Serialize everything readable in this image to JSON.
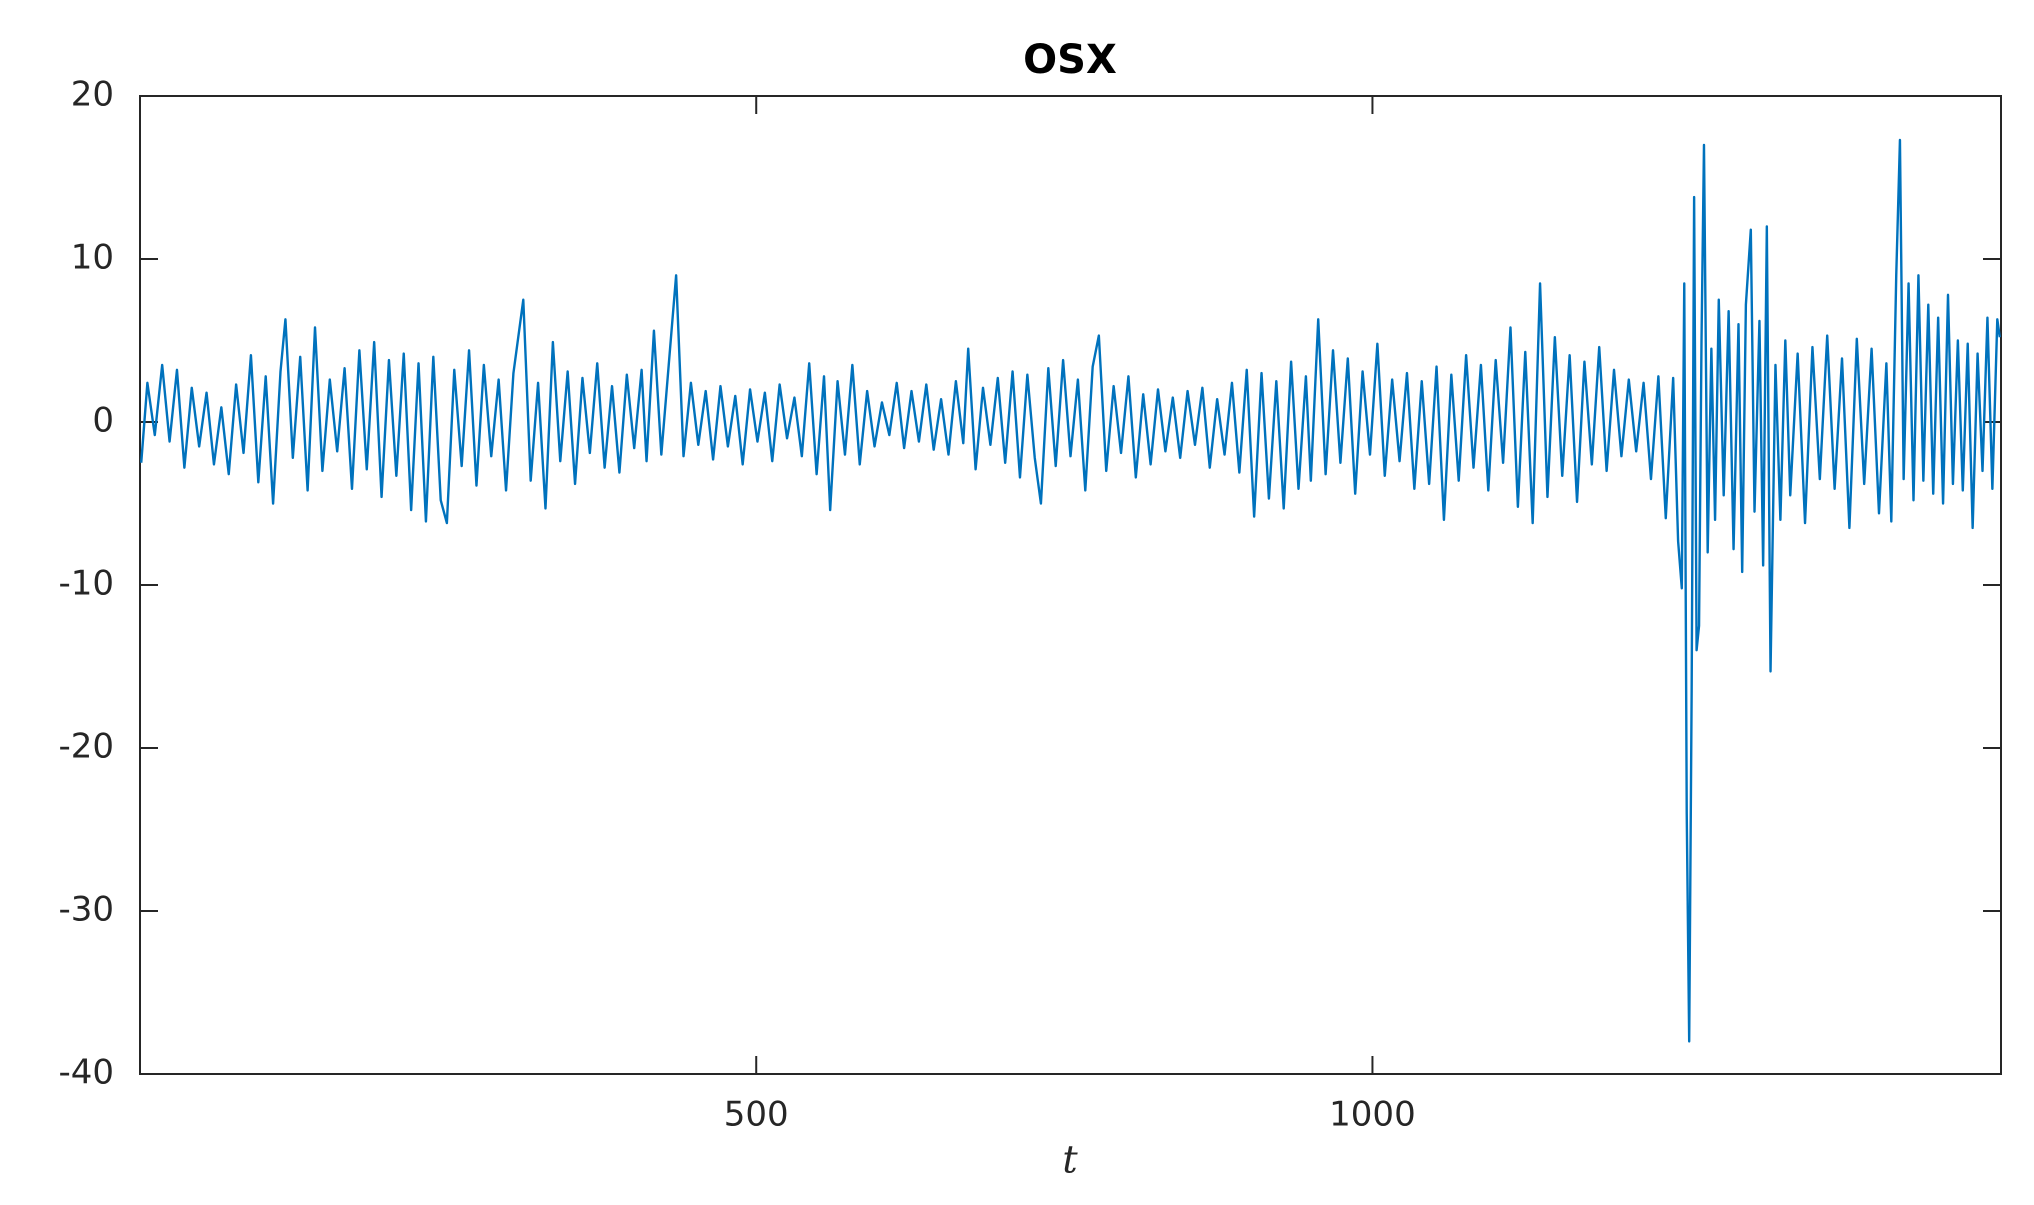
{
  "chart_data": {
    "type": "line",
    "title": "OSX",
    "x_label": "t",
    "color": "#0072bd",
    "xlim": [
      0,
      1510
    ],
    "xticks": [
      500,
      1000
    ],
    "ylim": [
      -40,
      20
    ],
    "yticks": [
      -40,
      -30,
      -20,
      -10,
      0,
      10,
      20
    ],
    "x": [
      1,
      6,
      12,
      18,
      24,
      30,
      36,
      42,
      48,
      54,
      60,
      66,
      72,
      78,
      84,
      90,
      96,
      102,
      108,
      114,
      118,
      124,
      130,
      136,
      142,
      148,
      154,
      160,
      166,
      172,
      178,
      184,
      190,
      196,
      202,
      208,
      214,
      220,
      226,
      232,
      238,
      244,
      249,
      255,
      261,
      267,
      273,
      279,
      285,
      291,
      297,
      303,
      311,
      317,
      323,
      329,
      335,
      341,
      347,
      353,
      359,
      365,
      371,
      377,
      383,
      389,
      395,
      401,
      407,
      411,
      417,
      423,
      429,
      435,
      441,
      447,
      453,
      459,
      465,
      471,
      477,
      483,
      489,
      495,
      501,
      507,
      513,
      519,
      525,
      531,
      537,
      543,
      549,
      555,
      560,
      566,
      572,
      578,
      584,
      590,
      596,
      602,
      608,
      614,
      620,
      626,
      632,
      638,
      644,
      650,
      656,
      662,
      668,
      672,
      678,
      684,
      690,
      696,
      702,
      708,
      714,
      720,
      726,
      731,
      737,
      743,
      749,
      755,
      761,
      767,
      773,
      778,
      784,
      790,
      796,
      802,
      808,
      814,
      820,
      826,
      832,
      838,
      844,
      850,
      856,
      862,
      868,
      874,
      880,
      886,
      892,
      898,
      904,
      910,
      916,
      922,
      928,
      934,
      940,
      946,
      950,
      956,
      962,
      968,
      974,
      980,
      986,
      992,
      998,
      1004,
      1010,
      1016,
      1022,
      1028,
      1034,
      1040,
      1046,
      1052,
      1058,
      1064,
      1070,
      1076,
      1082,
      1088,
      1094,
      1100,
      1106,
      1112,
      1118,
      1124,
      1130,
      1136,
      1142,
      1148,
      1154,
      1160,
      1166,
      1172,
      1178,
      1184,
      1190,
      1196,
      1202,
      1208,
      1214,
      1220,
      1226,
      1232,
      1238,
      1244,
      1248,
      1251,
      1253,
      1255,
      1257,
      1259,
      1261,
      1263,
      1265,
      1267,
      1269,
      1272,
      1275,
      1278,
      1281,
      1285,
      1289,
      1293,
      1297,
      1300,
      1303,
      1307,
      1310,
      1314,
      1317,
      1320,
      1323,
      1327,
      1331,
      1335,
      1339,
      1345,
      1351,
      1357,
      1363,
      1369,
      1375,
      1381,
      1387,
      1393,
      1399,
      1405,
      1411,
      1417,
      1421,
      1425,
      1428,
      1431,
      1435,
      1439,
      1443,
      1447,
      1451,
      1455,
      1459,
      1463,
      1467,
      1471,
      1475,
      1479,
      1483,
      1487,
      1491,
      1495,
      1499,
      1503,
      1507,
      1509
    ],
    "values": [
      -2.5,
      2.4,
      -0.8,
      3.5,
      -1.2,
      3.2,
      -2.8,
      2.1,
      -1.5,
      1.8,
      -2.6,
      0.9,
      -3.2,
      2.3,
      -1.9,
      4.1,
      -3.7,
      2.8,
      -5.0,
      3.1,
      6.3,
      -2.2,
      4.0,
      -4.2,
      5.8,
      -3.0,
      2.6,
      -1.8,
      3.3,
      -4.1,
      4.4,
      -2.9,
      4.9,
      -4.6,
      3.8,
      -3.3,
      4.2,
      -5.4,
      3.6,
      -6.1,
      4.0,
      -4.8,
      -6.2,
      3.2,
      -2.7,
      4.4,
      -3.9,
      3.5,
      -2.1,
      2.6,
      -4.2,
      3.0,
      7.5,
      -3.6,
      2.4,
      -5.3,
      4.9,
      -2.4,
      3.1,
      -3.8,
      2.7,
      -1.9,
      3.6,
      -2.8,
      2.2,
      -3.1,
      2.9,
      -1.6,
      3.2,
      -2.4,
      5.6,
      -2.0,
      3.5,
      9.0,
      -2.1,
      2.4,
      -1.4,
      1.9,
      -2.3,
      2.2,
      -1.5,
      1.6,
      -2.6,
      2.0,
      -1.2,
      1.8,
      -2.4,
      2.3,
      -1.0,
      1.5,
      -2.1,
      3.6,
      -3.2,
      2.8,
      -5.4,
      2.5,
      -2.0,
      3.5,
      -2.6,
      1.9,
      -1.5,
      1.2,
      -0.8,
      2.4,
      -1.6,
      1.9,
      -1.2,
      2.3,
      -1.7,
      1.4,
      -2.0,
      2.5,
      -1.3,
      4.5,
      -2.9,
      2.1,
      -1.4,
      2.7,
      -2.5,
      3.1,
      -3.4,
      2.9,
      -2.2,
      -5.0,
      3.3,
      -2.7,
      3.8,
      -2.1,
      2.6,
      -4.2,
      3.4,
      5.3,
      -3.0,
      2.2,
      -1.9,
      2.8,
      -3.4,
      1.7,
      -2.6,
      2.0,
      -1.8,
      1.5,
      -2.2,
      1.9,
      -1.4,
      2.1,
      -2.8,
      1.4,
      -2.0,
      2.4,
      -3.1,
      3.2,
      -5.8,
      3.0,
      -4.7,
      2.5,
      -5.3,
      3.7,
      -4.1,
      2.8,
      -3.6,
      6.3,
      -3.2,
      4.4,
      -2.5,
      3.9,
      -4.4,
      3.1,
      -2.0,
      4.8,
      -3.3,
      2.6,
      -2.4,
      3.0,
      -4.1,
      2.5,
      -3.8,
      3.4,
      -6.0,
      2.9,
      -3.6,
      4.1,
      -2.8,
      3.5,
      -4.2,
      3.8,
      -2.5,
      5.8,
      -5.2,
      4.3,
      -6.2,
      8.5,
      -4.6,
      5.2,
      -3.3,
      4.1,
      -4.9,
      3.7,
      -2.6,
      4.6,
      -3.0,
      3.2,
      -2.1,
      2.6,
      -1.8,
      2.4,
      -3.5,
      2.8,
      -5.9,
      2.7,
      -7.3,
      -10.2,
      8.5,
      -24.0,
      -38.0,
      -16.5,
      13.8,
      -14.0,
      -12.5,
      5.0,
      17.0,
      -8.0,
      4.5,
      -6.0,
      7.5,
      -4.5,
      6.8,
      -7.8,
      6.0,
      -9.2,
      7.2,
      11.8,
      -5.5,
      6.2,
      -8.8,
      12.0,
      -15.3,
      3.5,
      -6.0,
      5.0,
      -4.5,
      4.2,
      -6.2,
      4.6,
      -3.5,
      5.3,
      -4.1,
      3.9,
      -6.5,
      5.1,
      -3.8,
      4.5,
      -5.6,
      3.6,
      -6.1,
      9.0,
      17.3,
      -3.5,
      8.5,
      -4.8,
      9.0,
      -3.6,
      7.2,
      -4.4,
      6.4,
      -5.0,
      7.8,
      -3.8,
      5.0,
      -4.2,
      4.8,
      -6.5,
      4.2,
      -3.0,
      6.4,
      -4.1,
      6.3,
      5.2
    ]
  }
}
